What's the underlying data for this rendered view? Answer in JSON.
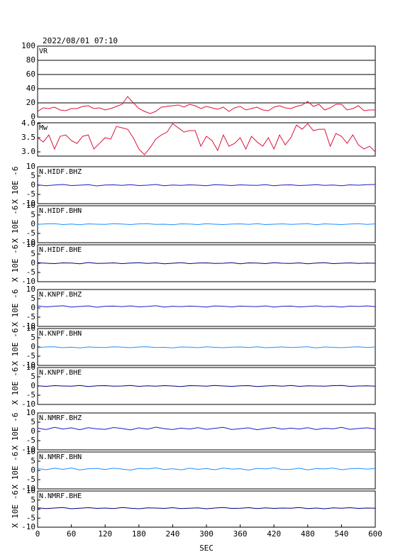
{
  "chart_data": [
    {
      "type": "line",
      "title": "2022/08/01 07:10",
      "x": [
        0,
        10,
        20,
        30,
        40,
        50,
        60,
        70,
        80,
        90,
        100,
        110,
        120,
        130,
        140,
        150,
        160,
        170,
        180,
        190,
        200,
        210,
        220,
        230,
        240,
        250,
        260,
        270,
        280,
        290,
        300,
        310,
        320,
        330,
        340,
        350,
        360,
        370,
        380,
        390,
        400,
        410,
        420,
        430,
        440,
        450,
        460,
        470,
        480,
        490,
        500,
        510,
        520,
        530,
        540,
        550,
        560,
        570,
        580,
        590,
        600
      ],
      "series": [
        {
          "name": "VR",
          "color": "#dc143c",
          "values": [
            8,
            13,
            12,
            14,
            10,
            9,
            12,
            12,
            15,
            16,
            12,
            13,
            10,
            12,
            15,
            18,
            29,
            20,
            12,
            8,
            5,
            8,
            14,
            15,
            16,
            17,
            14,
            18,
            16,
            12,
            15,
            13,
            11,
            14,
            8,
            13,
            15,
            10,
            12,
            14,
            10,
            9,
            14,
            16,
            13,
            12,
            15,
            17,
            22,
            15,
            18,
            10,
            13,
            18,
            18,
            10,
            12,
            16,
            9,
            10,
            10
          ]
        }
      ],
      "xlim": [
        0,
        600
      ],
      "ylim": [
        0,
        100
      ],
      "yticks": [
        0,
        20,
        40,
        60,
        80,
        100
      ],
      "grid": true
    },
    {
      "type": "line",
      "x": [
        0,
        10,
        20,
        30,
        40,
        50,
        60,
        70,
        80,
        90,
        100,
        110,
        120,
        130,
        140,
        150,
        160,
        170,
        180,
        190,
        200,
        210,
        220,
        230,
        240,
        250,
        260,
        270,
        280,
        290,
        300,
        310,
        320,
        330,
        340,
        350,
        360,
        370,
        380,
        390,
        400,
        410,
        420,
        430,
        440,
        450,
        460,
        470,
        480,
        490,
        500,
        510,
        520,
        530,
        540,
        550,
        560,
        570,
        580,
        590,
        600
      ],
      "series": [
        {
          "name": "Mw",
          "color": "#dc143c",
          "values": [
            3.5,
            3.35,
            3.6,
            3.1,
            3.55,
            3.6,
            3.4,
            3.3,
            3.55,
            3.6,
            3.1,
            3.3,
            3.5,
            3.45,
            3.9,
            3.85,
            3.8,
            3.5,
            3.1,
            2.9,
            3.15,
            3.45,
            3.6,
            3.7,
            4.0,
            3.85,
            3.7,
            3.75,
            3.75,
            3.2,
            3.55,
            3.4,
            3.05,
            3.6,
            3.2,
            3.3,
            3.5,
            3.1,
            3.55,
            3.35,
            3.2,
            3.5,
            3.1,
            3.6,
            3.25,
            3.5,
            3.95,
            3.8,
            4.0,
            3.75,
            3.8,
            3.8,
            3.2,
            3.65,
            3.55,
            3.3,
            3.6,
            3.25,
            3.1,
            3.2,
            3.0
          ]
        }
      ],
      "xlim": [
        0,
        600
      ],
      "ylim": [
        2.85,
        4.03
      ],
      "yticks": [
        {
          "value": 3,
          "label": "3.0"
        },
        3.5,
        {
          "value": 4,
          "label": "4.0"
        }
      ],
      "grid": false
    },
    {
      "type": "line",
      "ylabel": "X 10E -6",
      "x": [
        0,
        15,
        30,
        45,
        60,
        75,
        90,
        105,
        120,
        135,
        150,
        165,
        180,
        195,
        210,
        225,
        240,
        255,
        270,
        285,
        300,
        315,
        330,
        345,
        360,
        375,
        390,
        405,
        420,
        435,
        450,
        465,
        480,
        495,
        510,
        525,
        540,
        555,
        570,
        585,
        600
      ],
      "series": [
        {
          "name": "N.HIDF.BHZ",
          "color": "#1c1cc8",
          "values": [
            0.2,
            -0.3,
            0.1,
            0.4,
            -0.2,
            0.0,
            0.3,
            -0.4,
            0.1,
            0.2,
            -0.1,
            0.3,
            -0.2,
            0.0,
            0.4,
            -0.3,
            0.1,
            -0.1,
            0.2,
            0.0,
            -0.3,
            0.3,
            0.1,
            -0.2,
            0.2,
            0.0,
            -0.1,
            0.3,
            -0.3,
            0.1,
            0.2,
            -0.2,
            0.0,
            0.3,
            -0.1,
            0.1,
            -0.3,
            0.2,
            0.0,
            0.3,
            0.4
          ]
        }
      ],
      "xlim": [
        0,
        600
      ],
      "ylim": [
        -10,
        10
      ],
      "yticks": [
        -10,
        -5,
        0,
        5,
        10
      ]
    },
    {
      "type": "line",
      "ylabel": "X 10E -6",
      "x": [
        0,
        15,
        30,
        45,
        60,
        75,
        90,
        105,
        120,
        135,
        150,
        165,
        180,
        195,
        210,
        225,
        240,
        255,
        270,
        285,
        300,
        315,
        330,
        345,
        360,
        375,
        390,
        405,
        420,
        435,
        450,
        465,
        480,
        495,
        510,
        525,
        540,
        555,
        570,
        585,
        600
      ],
      "series": [
        {
          "name": "N.HIDF.BHN",
          "color": "#1e90ff",
          "values": [
            -0.1,
            0.2,
            0.3,
            -0.2,
            0.1,
            -0.3,
            0.2,
            0.0,
            -0.1,
            0.3,
            0.1,
            -0.2,
            0.2,
            0.3,
            -0.1,
            0.0,
            -0.3,
            0.2,
            0.1,
            -0.2,
            0.3,
            0.0,
            -0.2,
            0.1,
            0.2,
            -0.1,
            0.3,
            -0.2,
            0.0,
            0.2,
            -0.1,
            0.1,
            0.3,
            -0.3,
            0.2,
            0.0,
            -0.2,
            0.1,
            0.3,
            -0.1,
            0.2
          ]
        }
      ],
      "xlim": [
        0,
        600
      ],
      "ylim": [
        -10,
        10
      ],
      "yticks": [
        -10,
        -5,
        0,
        5,
        10
      ]
    },
    {
      "type": "line",
      "ylabel": "X 10E -6",
      "x": [
        0,
        15,
        30,
        45,
        60,
        75,
        90,
        105,
        120,
        135,
        150,
        165,
        180,
        195,
        210,
        225,
        240,
        255,
        270,
        285,
        300,
        315,
        330,
        345,
        360,
        375,
        390,
        405,
        420,
        435,
        450,
        465,
        480,
        495,
        510,
        525,
        540,
        555,
        570,
        585,
        600
      ],
      "series": [
        {
          "name": "N.HIDF.BHE",
          "color": "#000080",
          "values": [
            0.3,
            0.0,
            -0.2,
            0.2,
            0.1,
            -0.3,
            0.4,
            -0.1,
            0.0,
            0.2,
            -0.2,
            0.1,
            0.3,
            -0.1,
            0.2,
            -0.3,
            0.0,
            0.3,
            -0.2,
            0.1,
            0.2,
            -0.1,
            0.0,
            0.3,
            -0.3,
            0.2,
            0.1,
            -0.2,
            0.3,
            0.0,
            -0.1,
            0.2,
            -0.3,
            0.1,
            0.3,
            -0.2,
            0.0,
            0.2,
            -0.1,
            0.1,
            0.0
          ]
        }
      ],
      "xlim": [
        0,
        600
      ],
      "ylim": [
        -10,
        10
      ],
      "yticks": [
        -10,
        -5,
        0,
        5,
        10
      ]
    },
    {
      "type": "line",
      "ylabel": "X 10E -6",
      "x": [
        0,
        15,
        30,
        45,
        60,
        75,
        90,
        105,
        120,
        135,
        150,
        165,
        180,
        195,
        210,
        225,
        240,
        255,
        270,
        285,
        300,
        315,
        330,
        345,
        360,
        375,
        390,
        405,
        420,
        435,
        450,
        465,
        480,
        495,
        510,
        525,
        540,
        555,
        570,
        585,
        600
      ],
      "series": [
        {
          "name": "N.KNPF.BHZ",
          "color": "#1c1cc8",
          "values": [
            1.1,
            0.6,
            0.9,
            1.2,
            0.5,
            0.8,
            1.1,
            0.4,
            0.9,
            1.0,
            0.7,
            1.1,
            0.6,
            0.8,
            1.2,
            0.5,
            0.9,
            0.7,
            1.0,
            0.8,
            0.5,
            1.1,
            0.9,
            0.6,
            1.0,
            0.8,
            0.7,
            1.1,
            0.5,
            0.9,
            1.0,
            0.6,
            0.8,
            1.1,
            0.7,
            0.9,
            0.5,
            1.0,
            0.8,
            1.1,
            0.7
          ]
        }
      ],
      "xlim": [
        0,
        600
      ],
      "ylim": [
        -10,
        10
      ],
      "yticks": [
        -10,
        -5,
        0,
        5,
        10
      ]
    },
    {
      "type": "line",
      "ylabel": "X 10E -6",
      "x": [
        0,
        15,
        30,
        45,
        60,
        75,
        90,
        105,
        120,
        135,
        150,
        165,
        180,
        195,
        210,
        225,
        240,
        255,
        270,
        285,
        300,
        315,
        330,
        345,
        360,
        375,
        390,
        405,
        420,
        435,
        450,
        465,
        480,
        495,
        510,
        525,
        540,
        555,
        570,
        585,
        600
      ],
      "series": [
        {
          "name": "N.KNPF.BHN",
          "color": "#1e90ff",
          "values": [
            -0.3,
            0.0,
            0.1,
            -0.4,
            -0.1,
            -0.5,
            0.0,
            -0.2,
            -0.3,
            0.1,
            -0.1,
            -0.4,
            0.0,
            0.1,
            -0.3,
            -0.2,
            -0.5,
            0.0,
            -0.1,
            -0.4,
            0.1,
            -0.2,
            -0.4,
            -0.1,
            0.0,
            -0.3,
            0.1,
            -0.4,
            -0.2,
            0.0,
            -0.3,
            -0.1,
            0.1,
            -0.5,
            0.0,
            -0.2,
            -0.4,
            -0.1,
            0.1,
            -0.3,
            0.0
          ]
        }
      ],
      "xlim": [
        0,
        600
      ],
      "ylim": [
        -10,
        10
      ],
      "yticks": [
        -10,
        -5,
        0,
        5,
        10
      ]
    },
    {
      "type": "line",
      "ylabel": "X 10E -6",
      "x": [
        0,
        15,
        30,
        45,
        60,
        75,
        90,
        105,
        120,
        135,
        150,
        165,
        180,
        195,
        210,
        225,
        240,
        255,
        270,
        285,
        300,
        315,
        330,
        345,
        360,
        375,
        390,
        405,
        420,
        435,
        450,
        465,
        480,
        495,
        510,
        525,
        540,
        555,
        570,
        585,
        600
      ],
      "series": [
        {
          "name": "N.KNPF.BHE",
          "color": "#000080",
          "values": [
            0.1,
            -0.2,
            0.2,
            0.0,
            -0.1,
            0.3,
            -0.3,
            0.1,
            0.2,
            -0.1,
            0.0,
            0.3,
            -0.2,
            0.1,
            -0.1,
            0.2,
            0.0,
            -0.3,
            0.2,
            0.1,
            -0.1,
            0.3,
            0.0,
            -0.2,
            0.1,
            0.2,
            -0.3,
            0.0,
            0.2,
            -0.1,
            0.3,
            -0.2,
            0.1,
            0.0,
            -0.1,
            0.2,
            0.3,
            -0.2,
            0.0,
            0.1,
            -0.1
          ]
        }
      ],
      "xlim": [
        0,
        600
      ],
      "ylim": [
        -10,
        10
      ],
      "yticks": [
        -10,
        -5,
        0,
        5,
        10
      ]
    },
    {
      "type": "line",
      "ylabel": "X 10E -6",
      "x": [
        0,
        15,
        30,
        45,
        60,
        75,
        90,
        105,
        120,
        135,
        150,
        165,
        180,
        195,
        210,
        225,
        240,
        255,
        270,
        285,
        300,
        315,
        330,
        345,
        360,
        375,
        390,
        405,
        420,
        435,
        450,
        465,
        480,
        495,
        510,
        525,
        540,
        555,
        570,
        585,
        600
      ],
      "series": [
        {
          "name": "N.NMRF.BHZ",
          "color": "#1c1cc8",
          "values": [
            1.8,
            1.0,
            2.2,
            1.3,
            1.9,
            0.9,
            2.0,
            1.4,
            1.1,
            2.1,
            1.6,
            0.8,
            1.9,
            1.2,
            2.3,
            1.5,
            1.0,
            1.8,
            1.3,
            2.0,
            1.1,
            1.7,
            2.2,
            1.0,
            1.5,
            1.9,
            0.9,
            1.6,
            2.1,
            1.2,
            1.8,
            1.3,
            2.0,
            1.0,
            1.7,
            1.4,
            2.2,
            1.1,
            1.6,
            1.9,
            1.4
          ]
        }
      ],
      "xlim": [
        0,
        600
      ],
      "ylim": [
        -10,
        10
      ],
      "yticks": [
        -10,
        -5,
        0,
        5,
        10
      ]
    },
    {
      "type": "line",
      "ylabel": "X 10E -6",
      "x": [
        0,
        15,
        30,
        45,
        60,
        75,
        90,
        105,
        120,
        135,
        150,
        165,
        180,
        195,
        210,
        225,
        240,
        255,
        270,
        285,
        300,
        315,
        330,
        345,
        360,
        375,
        390,
        405,
        420,
        435,
        450,
        465,
        480,
        495,
        510,
        525,
        540,
        555,
        570,
        585,
        600
      ],
      "series": [
        {
          "name": "N.NMRF.BHN",
          "color": "#1e90ff",
          "values": [
            1.0,
            0.4,
            1.2,
            0.6,
            1.3,
            0.3,
            0.9,
            1.1,
            0.5,
            1.2,
            0.7,
            0.2,
            1.1,
            0.8,
            1.4,
            0.5,
            0.9,
            0.3,
            1.2,
            0.6,
            1.0,
            0.4,
            1.3,
            0.7,
            0.9,
            0.2,
            1.1,
            0.8,
            1.4,
            0.5,
            0.6,
            1.2,
            0.3,
            1.0,
            0.8,
            1.3,
            0.4,
            0.9,
            1.1,
            0.7,
            1.0
          ]
        }
      ],
      "xlim": [
        0,
        600
      ],
      "ylim": [
        -10,
        10
      ],
      "yticks": [
        -10,
        -5,
        0,
        5,
        10
      ]
    },
    {
      "type": "line",
      "ylabel": "X 10E -6",
      "x": [
        0,
        15,
        30,
        45,
        60,
        75,
        90,
        105,
        120,
        135,
        150,
        165,
        180,
        195,
        210,
        225,
        240,
        255,
        270,
        285,
        300,
        315,
        330,
        345,
        360,
        375,
        390,
        405,
        420,
        435,
        450,
        465,
        480,
        495,
        510,
        525,
        540,
        555,
        570,
        585,
        600
      ],
      "series": [
        {
          "name": "N.NMRF.BHE",
          "color": "#000080",
          "values": [
            0.7,
            0.3,
            0.6,
            0.9,
            0.2,
            0.5,
            0.8,
            0.4,
            0.6,
            0.3,
            0.9,
            0.5,
            0.2,
            0.7,
            0.6,
            0.4,
            0.8,
            0.3,
            0.5,
            0.7,
            0.2,
            0.6,
            0.9,
            0.4,
            0.5,
            0.8,
            0.3,
            0.7,
            0.4,
            0.6,
            0.5,
            0.9,
            0.3,
            0.6,
            0.2,
            0.7,
            0.5,
            0.8,
            0.4,
            0.6,
            0.5
          ]
        }
      ],
      "xlim": [
        0,
        600
      ],
      "ylim": [
        -10,
        10
      ],
      "yticks": [
        -10,
        -5,
        0,
        5,
        10
      ],
      "xticks": [
        0,
        60,
        120,
        180,
        240,
        300,
        360,
        420,
        480,
        540,
        600
      ],
      "xlabel": "SEC"
    }
  ]
}
